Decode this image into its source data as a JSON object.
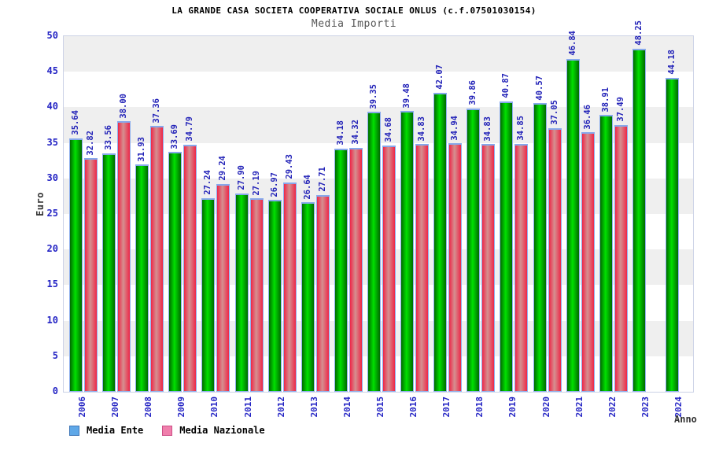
{
  "title": "LA GRANDE CASA SOCIETA COOPERATIVA SOCIALE ONLUS (c.f.07501030154)",
  "subtitle": "Media Importi",
  "axes": {
    "y_label": "Euro",
    "x_label": "Anno",
    "y_ticks": [
      0,
      5,
      10,
      15,
      20,
      25,
      30,
      35,
      40,
      45,
      50
    ]
  },
  "legend": [
    {
      "label": "Media Ente",
      "swatch_fill": "#5fa8e8",
      "swatch_border": "#4077b8"
    },
    {
      "label": "Media Nazionale",
      "swatch_fill": "#f07fac",
      "swatch_border": "#cc4e86"
    }
  ],
  "colors": {
    "bar_ente_edge": "#006b00",
    "bar_ente_center": "#00e000",
    "bar_naz_edge": "#ee2748",
    "bar_naz_center": "#d59090",
    "bar_cap": "#86a8ec",
    "tick_text": "#2424c4",
    "value_text": "#2323b8",
    "band_gray": "#efefef",
    "band_white": "#ffffff"
  },
  "chart_data": {
    "type": "bar",
    "title": "Media Importi",
    "xlabel": "Anno",
    "ylabel": "Euro",
    "ylim": [
      0,
      50
    ],
    "grid": "alternating horizontal bands every 5 units, gray band at 45-50",
    "legend_position": "bottom-left",
    "categories": [
      "2006",
      "2007",
      "2008",
      "2009",
      "2010",
      "2011",
      "2012",
      "2013",
      "2014",
      "2015",
      "2016",
      "2017",
      "2018",
      "2019",
      "2020",
      "2021",
      "2022",
      "2023",
      "2024"
    ],
    "series": [
      {
        "name": "Media Ente",
        "values": [
          35.64,
          33.56,
          31.93,
          33.69,
          27.24,
          27.9,
          26.97,
          26.64,
          34.18,
          39.35,
          39.48,
          42.07,
          39.86,
          40.87,
          40.57,
          46.84,
          38.91,
          48.25,
          44.18
        ]
      },
      {
        "name": "Media Nazionale",
        "values": [
          32.82,
          38.0,
          37.36,
          34.79,
          29.24,
          27.19,
          29.43,
          27.71,
          34.32,
          34.68,
          34.83,
          34.94,
          34.83,
          34.85,
          37.05,
          36.46,
          37.49,
          null,
          null
        ]
      }
    ]
  }
}
